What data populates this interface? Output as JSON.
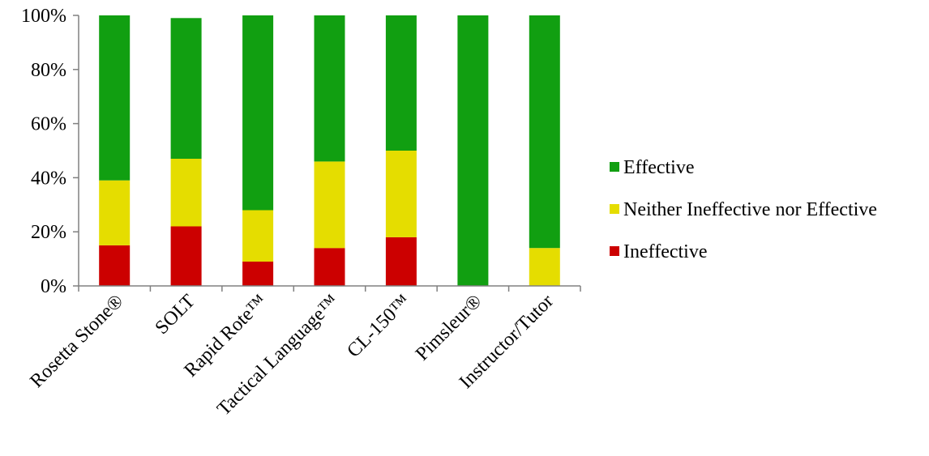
{
  "chart_data": {
    "type": "bar",
    "stacked": true,
    "categories": [
      "Rosetta Stone®",
      "SOLT",
      "Rapid Rote™",
      "Tactical Language™",
      "CL-150™",
      "Pimsleur®",
      "Instructor/Tutor"
    ],
    "series": [
      {
        "name": "Ineffective",
        "color": "#cc0000",
        "values": [
          15,
          22,
          9,
          14,
          18,
          0,
          0
        ]
      },
      {
        "name": "Neither Ineffective nor Effective",
        "color": "#e5dd00",
        "values": [
          24,
          25,
          19,
          32,
          32,
          0,
          14
        ]
      },
      {
        "name": "Effective",
        "color": "#119f11",
        "values": [
          61,
          52,
          72,
          54,
          50,
          100,
          86
        ]
      }
    ],
    "legend_order": [
      "Effective",
      "Neither Ineffective nor Effective",
      "Ineffective"
    ],
    "y_ticks": [
      "0%",
      "20%",
      "40%",
      "60%",
      "80%",
      "100%"
    ],
    "ylim": [
      0,
      100
    ],
    "title": "",
    "xlabel": "",
    "ylabel": "",
    "grid": false,
    "legend_position": "right"
  }
}
